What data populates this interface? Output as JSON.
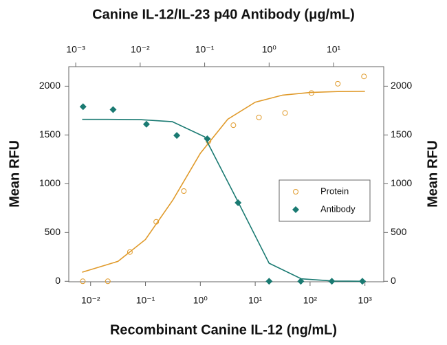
{
  "chart_data": {
    "type": "scatter",
    "title": "Canine IL-12/IL-23 p40 Antibody (μg/mL)",
    "x_label": "Recombinant Canine IL-12 (ng/mL)",
    "y_label": "Mean RFU",
    "y2_label": "Mean RFU",
    "xscale": "log",
    "x2scale": "log",
    "xlim": [
      0.004,
      2200
    ],
    "xticks": [
      {
        "value": 0.01,
        "label": "10⁻²"
      },
      {
        "value": 0.1,
        "label": "10⁻¹"
      },
      {
        "value": 1,
        "label": "10⁰"
      },
      {
        "value": 10,
        "label": "10¹"
      },
      {
        "value": 100,
        "label": "10²"
      },
      {
        "value": 1000,
        "label": "10³"
      }
    ],
    "x2lim": [
      0.00078,
      60
    ],
    "x2ticks": [
      {
        "value": 0.001,
        "label": "10⁻³"
      },
      {
        "value": 0.01,
        "label": "10⁻²"
      },
      {
        "value": 0.1,
        "label": "10⁻¹"
      },
      {
        "value": 1,
        "label": "10⁰"
      },
      {
        "value": 10,
        "label": "10¹"
      }
    ],
    "ylim": [
      -5,
      2200
    ],
    "yticks": [
      0,
      500,
      1000,
      1500,
      2000
    ],
    "y2lim": [
      -5,
      2200
    ],
    "y2ticks": [
      0,
      500,
      1000,
      1500,
      2000
    ],
    "legend": "right",
    "series": [
      {
        "name": "Protein",
        "color": "#e09a2a",
        "marker": "circle",
        "xaxis": "x",
        "x": [
          0.0072,
          0.0206,
          0.052,
          0.157,
          0.5,
          1.41,
          4.0,
          11.7,
          35,
          106,
          320,
          960
        ],
        "values": [
          0,
          0,
          300,
          610,
          925,
          1435,
          1600,
          1680,
          1725,
          1930,
          2025,
          2100
        ],
        "fit_x": [
          0.007,
          0.0316,
          0.1,
          0.316,
          1,
          3.16,
          10,
          31.6,
          100,
          316,
          1000
        ],
        "fit_values": [
          93,
          204,
          428,
          833,
          1312,
          1661,
          1836,
          1908,
          1935,
          1945,
          1948
        ]
      },
      {
        "name": "Antibody",
        "color": "#1a7a72",
        "marker": "diamond",
        "xaxis": "x2",
        "x": [
          0.0013,
          0.0038,
          0.0125,
          0.037,
          0.11,
          0.33,
          1.0,
          3.1,
          9.4,
          28
        ],
        "values": [
          1790,
          1760,
          1610,
          1495,
          1460,
          805,
          0,
          0,
          0,
          0
        ],
        "fit_x": [
          0.00126,
          0.00316,
          0.01,
          0.0316,
          0.1,
          0.316,
          1,
          3.16,
          10,
          31.6
        ],
        "fit_values": [
          1660,
          1660,
          1657,
          1636,
          1481,
          838,
          185,
          25,
          3,
          0
        ]
      }
    ]
  }
}
